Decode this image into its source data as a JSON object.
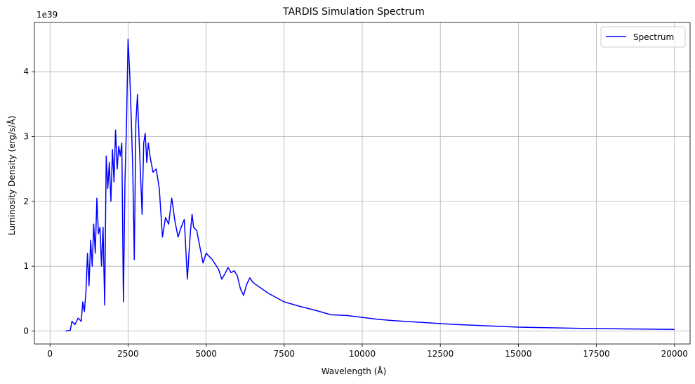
{
  "chart_data": {
    "type": "line",
    "title": "TARDIS Simulation Spectrum",
    "xlabel": "Wavelength (Å)",
    "ylabel": "Luminosity Density (erg/s/Å)",
    "y_offset_label": "1e39",
    "xlim": [
      -500,
      20500
    ],
    "ylim": [
      -0.2,
      4.76
    ],
    "x_ticks": [
      0,
      2500,
      5000,
      7500,
      10000,
      12500,
      15000,
      17500,
      20000
    ],
    "x_tick_labels": [
      "0",
      "2500",
      "5000",
      "7500",
      "10000",
      "12500",
      "15000",
      "17500",
      "20000"
    ],
    "y_ticks": [
      0,
      1,
      2,
      3,
      4
    ],
    "y_tick_labels": [
      "0",
      "1",
      "2",
      "3",
      "4"
    ],
    "grid": true,
    "legend_position": "top-right",
    "colors": {
      "line": "#0000ff",
      "grid": "#b0b0b0",
      "axis": "#000000"
    },
    "series": [
      {
        "name": "Spectrum",
        "color": "#0000ff",
        "x": [
          500,
          650,
          700,
          800,
          900,
          1000,
          1050,
          1100,
          1150,
          1200,
          1250,
          1300,
          1350,
          1400,
          1450,
          1500,
          1550,
          1600,
          1650,
          1700,
          1750,
          1800,
          1850,
          1900,
          1950,
          2000,
          2050,
          2100,
          2150,
          2200,
          2250,
          2300,
          2350,
          2400,
          2450,
          2500,
          2550,
          2600,
          2650,
          2700,
          2750,
          2800,
          2850,
          2900,
          2950,
          3000,
          3050,
          3100,
          3150,
          3200,
          3300,
          3400,
          3500,
          3600,
          3700,
          3800,
          3900,
          4000,
          4100,
          4200,
          4300,
          4400,
          4450,
          4500,
          4550,
          4600,
          4700,
          4800,
          4900,
          5000,
          5200,
          5400,
          5500,
          5600,
          5700,
          5800,
          5900,
          6000,
          6100,
          6200,
          6300,
          6400,
          6500,
          6700,
          7000,
          7500,
          8000,
          8500,
          9000,
          9500,
          10000,
          10500,
          11000,
          12000,
          13000,
          14000,
          15000,
          16000,
          17000,
          18000,
          19000,
          20000
        ],
        "values": [
          0.0,
          0.01,
          0.15,
          0.1,
          0.2,
          0.15,
          0.45,
          0.3,
          0.6,
          1.2,
          0.7,
          1.4,
          1.0,
          1.65,
          1.2,
          2.05,
          1.5,
          1.6,
          1.0,
          1.6,
          0.4,
          2.7,
          2.2,
          2.6,
          2.0,
          2.8,
          2.3,
          3.1,
          2.5,
          2.85,
          2.7,
          2.9,
          0.45,
          2.3,
          3.2,
          4.5,
          4.0,
          3.3,
          2.5,
          1.1,
          3.2,
          3.65,
          3.0,
          2.4,
          1.8,
          2.9,
          3.05,
          2.6,
          2.9,
          2.7,
          2.45,
          2.5,
          2.2,
          1.45,
          1.75,
          1.65,
          2.05,
          1.7,
          1.45,
          1.6,
          1.72,
          0.8,
          1.2,
          1.55,
          1.8,
          1.6,
          1.55,
          1.3,
          1.05,
          1.2,
          1.1,
          0.95,
          0.8,
          0.88,
          0.98,
          0.9,
          0.93,
          0.85,
          0.65,
          0.55,
          0.72,
          0.82,
          0.75,
          0.68,
          0.58,
          0.45,
          0.38,
          0.32,
          0.25,
          0.24,
          0.21,
          0.18,
          0.16,
          0.13,
          0.1,
          0.08,
          0.06,
          0.05,
          0.04,
          0.035,
          0.03,
          0.025
        ]
      }
    ]
  }
}
